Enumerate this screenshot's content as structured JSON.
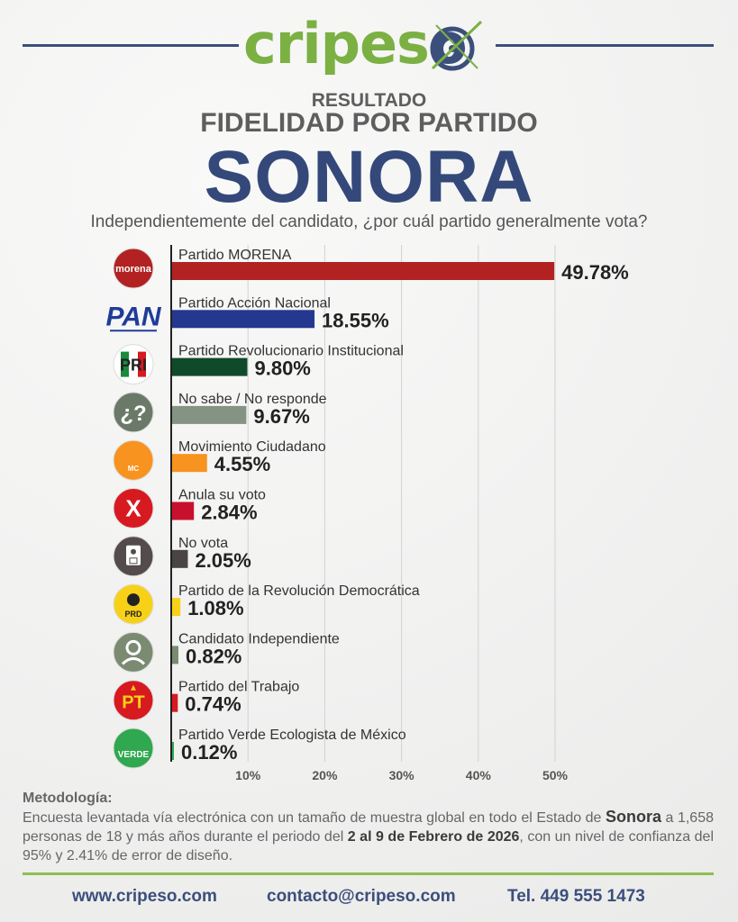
{
  "brand": {
    "logo_part1": "cripes",
    "logo_part2": "o",
    "colors": {
      "navy": "#3b4f7c",
      "green": "#7bb043"
    }
  },
  "header": {
    "line1": "RESULTADO",
    "line2": "FIDELIDAD POR PARTIDO",
    "state": "SONORA",
    "question": "Independientemente del candidato, ¿por cuál partido generalmente vota?"
  },
  "chart_data": {
    "type": "bar",
    "orientation": "horizontal",
    "categories": [
      "Partido MORENA",
      "Partido Acción Nacional",
      "Partido Revolucionario Institucional",
      "No sabe / No responde",
      "Movimiento Ciudadano",
      "Anula su voto",
      "No vota",
      "Partido de la Revolución Democrática",
      "Candidato Independiente",
      "Partido del Trabajo",
      "Partido Verde Ecologista de México"
    ],
    "values": [
      49.78,
      18.55,
      9.8,
      9.67,
      4.55,
      2.84,
      2.05,
      1.08,
      0.82,
      0.74,
      0.12
    ],
    "value_labels": [
      "49.78%",
      "18.55%",
      "9.80%",
      "9.67%",
      "4.55%",
      "2.84%",
      "2.05%",
      "1.08%",
      "0.82%",
      "0.74%",
      "0.12%"
    ],
    "colors": [
      "#b22222",
      "#24388f",
      "#0f4a2a",
      "#849384",
      "#f7931e",
      "#c8102e",
      "#4a4444",
      "#f7d117",
      "#7a8b72",
      "#d71920",
      "#2fa84f"
    ],
    "icons": [
      "morena-logo-icon",
      "pan-logo-icon",
      "pri-logo-icon",
      "question-icon",
      "mc-logo-icon",
      "x-icon",
      "ballot-icon",
      "prd-logo-icon",
      "person-icon",
      "pt-logo-icon",
      "verde-logo-icon"
    ],
    "icon_text": [
      "morena",
      "PAN",
      "PRI",
      "¿?",
      "MC",
      "X",
      "",
      "PRD",
      "",
      "PT",
      "VERDE"
    ],
    "x_ticks": [
      10,
      20,
      30,
      40,
      50
    ],
    "x_tick_labels": [
      "10%",
      "20%",
      "30%",
      "40%",
      "50%"
    ],
    "xlim": [
      0,
      50
    ],
    "grid": true
  },
  "methodology": {
    "title": "Metodología:",
    "t1": "Encuesta levantada vía electrónica con un tamaño de muestra global en todo el Estado de ",
    "b1": "Sonora",
    "t2": " a 1,658 personas de 18 y más años durante el periodo del ",
    "b2": "2 al 9 de Febrero de 2026",
    "t3": ", con un nivel de confianza del 95% y 2.41% de error de diseño."
  },
  "footer": {
    "website": "www.cripeso.com",
    "email": "contacto@cripeso.com",
    "phone": "Tel. 449 555 1473"
  }
}
